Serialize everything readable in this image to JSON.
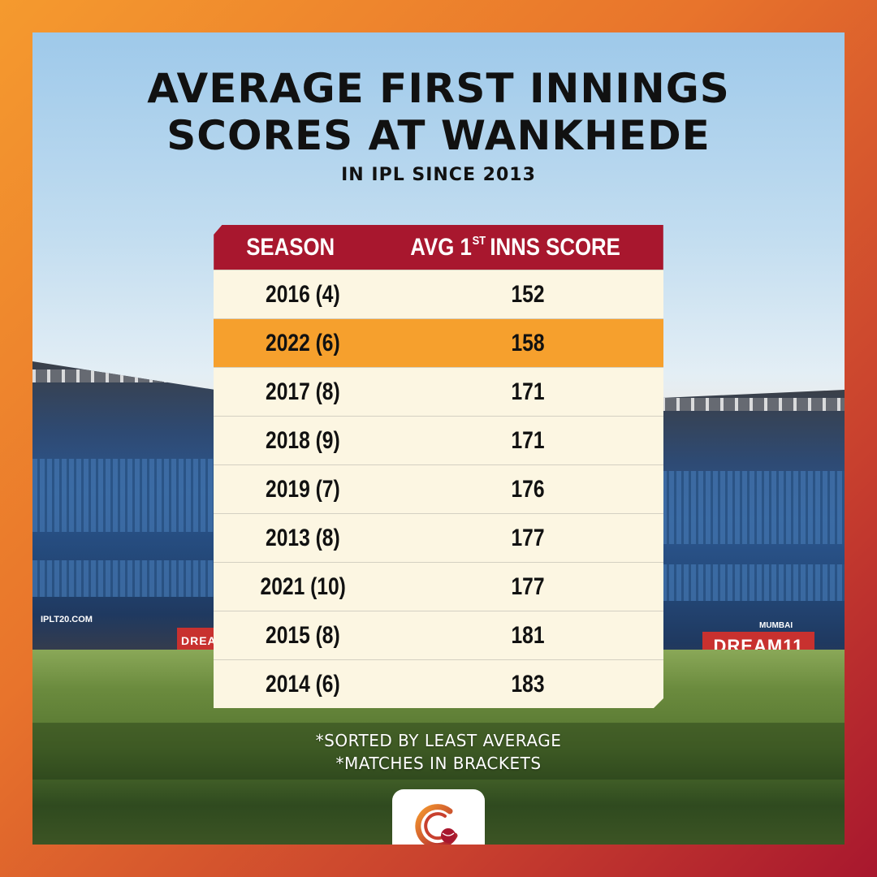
{
  "title_line1": "AVERAGE FIRST INNINGS",
  "title_line2": "SCORES AT WANKHEDE",
  "subtitle": "IN IPL SINCE 2013",
  "table": {
    "header_season": "SEASON",
    "header_score_prefix": "AVG 1",
    "header_score_sup": "ST",
    "header_score_suffix": "INNS SCORE",
    "rows": [
      {
        "season": "2016 (4)",
        "score": "152",
        "highlight": false
      },
      {
        "season": "2022 (6)",
        "score": "158",
        "highlight": true
      },
      {
        "season": "2017 (8)",
        "score": "171",
        "highlight": false
      },
      {
        "season": "2018 (9)",
        "score": "171",
        "highlight": false
      },
      {
        "season": "2019 (7)",
        "score": "176",
        "highlight": false
      },
      {
        "season": "2013 (8)",
        "score": "177",
        "highlight": false
      },
      {
        "season": "2021 (10)",
        "score": "177",
        "highlight": false
      },
      {
        "season": "2015 (8)",
        "score": "181",
        "highlight": false
      },
      {
        "season": "2014 (6)",
        "score": "183",
        "highlight": false
      }
    ]
  },
  "notes": {
    "line1": "*SORTED BY LEAST AVERAGE",
    "line2": "*MATCHES IN BRACKETS"
  },
  "background": {
    "banner_left": "IPLT20.COM",
    "banner_right_city": "MUMBAI",
    "ad_text": "DREAM11"
  },
  "colors": {
    "header_bg": "#a8172e",
    "highlight_row": "#f6a02d",
    "row_bg": "#fcf6e2"
  },
  "logo_icon": "cricket-ball-logo-icon"
}
